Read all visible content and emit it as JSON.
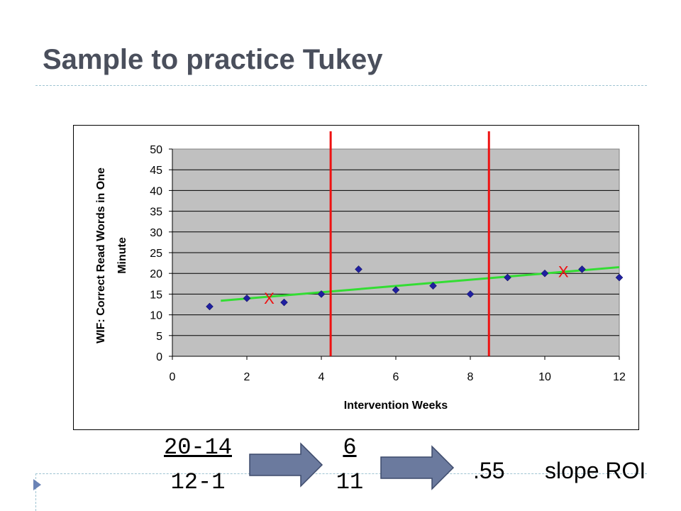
{
  "slide": {
    "title": "Sample to practice Tukey"
  },
  "calc": {
    "frac1_num": "20-14",
    "frac1_den": "12-1",
    "frac2_num": "6",
    "frac2_den": "11",
    "result": ".55",
    "result_label": "slope ROI"
  },
  "colors": {
    "point": "#1f1fa0",
    "trend": "#33dd33",
    "divider": "#ee1111",
    "plot_bg": "#c0c0c0",
    "arrow_fill": "#6b7a9e"
  },
  "chart_data": {
    "type": "scatter",
    "xlabel": "Intervention Weeks",
    "ylabel": "WIF: Correct Read Words in One Minute",
    "xlim": [
      0,
      12
    ],
    "ylim": [
      0,
      50
    ],
    "x_ticks": [
      0,
      2,
      4,
      6,
      8,
      10,
      12
    ],
    "y_ticks": [
      0,
      5,
      10,
      15,
      20,
      25,
      30,
      35,
      40,
      45,
      50
    ],
    "grid": true,
    "series": [
      {
        "x": [
          1,
          2,
          3,
          4,
          5,
          6,
          7,
          8,
          9,
          10,
          11,
          12
        ],
        "y": [
          12,
          14,
          13,
          15,
          21,
          16,
          17,
          15,
          19,
          20,
          21,
          19
        ]
      }
    ],
    "trendline": {
      "x": [
        1.3,
        12
      ],
      "y": [
        13.4,
        21.5
      ]
    },
    "dividers_x": [
      4.25,
      8.5
    ],
    "markers": [
      {
        "label": "X",
        "x": 2.6,
        "y": 14
      },
      {
        "label": "X",
        "x": 10.5,
        "y": 20.5
      }
    ]
  }
}
